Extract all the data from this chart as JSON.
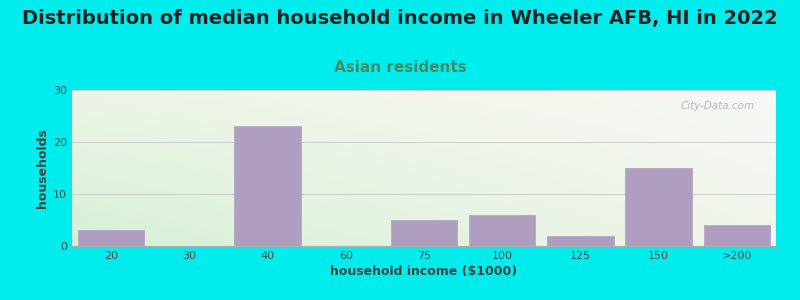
{
  "title": "Distribution of median household income in Wheeler AFB, HI in 2022",
  "subtitle": "Asian residents",
  "xlabel": "household income ($1000)",
  "ylabel": "households",
  "categories": [
    "20",
    "30",
    "40",
    "60",
    "75",
    "100",
    "125",
    "150",
    ">200"
  ],
  "values": [
    3,
    0,
    23,
    0,
    5,
    6,
    2,
    15,
    4
  ],
  "bar_color": "#b09ec0",
  "ylim": [
    0,
    30
  ],
  "yticks": [
    0,
    10,
    20,
    30
  ],
  "bg_outer": "#00eded",
  "grad_topleft": "#e8f2e0",
  "grad_topright": "#f8f8f5",
  "grad_bottomleft": "#d0ecd0",
  "grad_bottomright": "#f0f0ec",
  "title_fontsize": 14,
  "subtitle_fontsize": 11,
  "subtitle_color": "#448866",
  "axis_label_fontsize": 9,
  "tick_fontsize": 8,
  "watermark": "City-Data.com",
  "grid_color": "#cccccc",
  "title_color": "#222222"
}
